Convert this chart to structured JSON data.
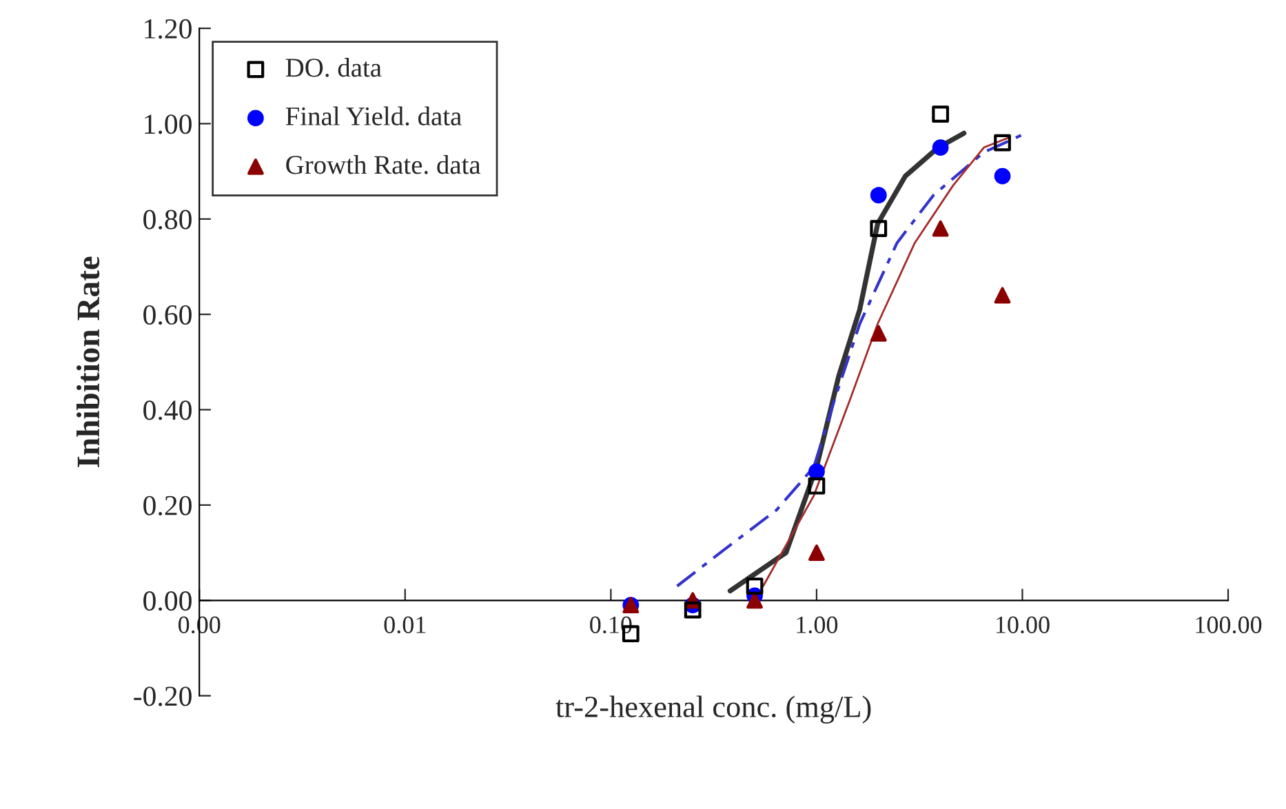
{
  "chart_data": {
    "type": "scatter",
    "xlabel": "tr-2-hexenal conc. (mg/L)",
    "ylabel": "Inhibition Rate",
    "log": "x",
    "xlim": [
      0.001,
      100
    ],
    "xticks": [
      {
        "value": 0.001,
        "label": "0.00"
      },
      {
        "value": 0.01,
        "label": "0.01"
      },
      {
        "value": 0.1,
        "label": "0.10"
      },
      {
        "value": 1,
        "label": "1.00"
      },
      {
        "value": 10,
        "label": "10.00"
      },
      {
        "value": 100,
        "label": "100.00"
      }
    ],
    "ylim": [
      -0.2,
      1.2
    ],
    "yticks": [
      {
        "value": -0.2,
        "label": "-0.20"
      },
      {
        "value": 0,
        "label": "0.00"
      },
      {
        "value": 0.2,
        "label": "0.20"
      },
      {
        "value": 0.4,
        "label": "0.40"
      },
      {
        "value": 0.6,
        "label": "0.60"
      },
      {
        "value": 0.8,
        "label": "0.80"
      },
      {
        "value": 1.0,
        "label": "1.00"
      },
      {
        "value": 1.2,
        "label": "1.20"
      }
    ],
    "grid": false,
    "legend": "top left",
    "series": [
      {
        "name": "DO. data",
        "marker": "square",
        "color": "#000000",
        "x": [
          0.125,
          0.25,
          0.5,
          1,
          2,
          4,
          8
        ],
        "values": [
          -0.07,
          -0.02,
          0.03,
          0.24,
          0.78,
          1.02,
          0.96
        ]
      },
      {
        "name": "Final Yield. data",
        "marker": "circle",
        "color": "#0000ff",
        "x": [
          0.125,
          0.25,
          0.5,
          1,
          2,
          4,
          8
        ],
        "values": [
          -0.01,
          -0.01,
          0.01,
          0.27,
          0.85,
          0.95,
          0.89
        ]
      },
      {
        "name": "Growth Rate. data",
        "marker": "triangle",
        "color": "#8b0000",
        "x": [
          0.125,
          0.25,
          0.5,
          1,
          2,
          4,
          8
        ],
        "values": [
          -0.01,
          0.0,
          0.0,
          0.1,
          0.56,
          0.78,
          0.64
        ]
      },
      {
        "type": "line",
        "line_style": "solid",
        "color": "#333333",
        "x": [
          0.38,
          0.71,
          1.0,
          1.28,
          1.62,
          1.98,
          2.7,
          3.9,
          5.2
        ],
        "values": [
          0.02,
          0.1,
          0.28,
          0.47,
          0.61,
          0.79,
          0.89,
          0.95,
          0.98
        ]
      },
      {
        "type": "line",
        "line_style": "dashed",
        "color": "#3333cc",
        "x": [
          0.21,
          0.34,
          0.64,
          0.97,
          1.22,
          1.62,
          2.46,
          3.7,
          6.5,
          10.4
        ],
        "values": [
          0.03,
          0.1,
          0.19,
          0.28,
          0.42,
          0.58,
          0.75,
          0.85,
          0.94,
          0.98
        ]
      },
      {
        "type": "line",
        "line_style": "solid",
        "color": "#a52a2a",
        "x": [
          0.55,
          0.97,
          1.45,
          1.98,
          3.0,
          4.6,
          6.5,
          8.5
        ],
        "values": [
          0.03,
          0.22,
          0.42,
          0.58,
          0.75,
          0.87,
          0.95,
          0.97
        ]
      }
    ]
  }
}
